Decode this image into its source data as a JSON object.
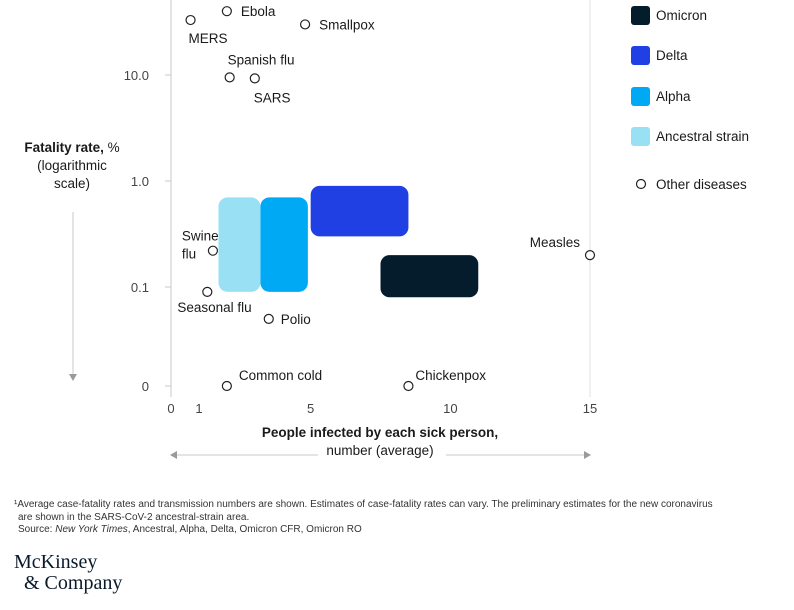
{
  "chart_data": {
    "type": "scatter",
    "y_scale": "log",
    "xlabel_bold": "People infected by each sick person,",
    "xlabel_rest": "number (average)",
    "ylabel_bold": "Fatality rate,",
    "ylabel_rest": "% (logarithmic scale)",
    "x_ticks": [
      "0",
      "1",
      "5",
      "10",
      "15"
    ],
    "y_ticks": [
      "10.0",
      "1.0",
      "0.1",
      "0"
    ],
    "xlim": [
      0,
      15
    ],
    "legend": [
      "Omicron",
      "Delta",
      "Alpha",
      "Ancestral strain",
      "Other diseases"
    ],
    "legend_position": "right",
    "colors": {
      "Omicron": "#051c2c",
      "Delta": "#2140e4",
      "Alpha": "#00a9f4",
      "Ancestral strain": "#99e0f5",
      "Other diseases": "#ffffff"
    },
    "variant_ranges": [
      {
        "name": "Omicron",
        "x_min": 7.5,
        "x_max": 11.0,
        "y_min": 0.08,
        "y_max": 0.2
      },
      {
        "name": "Delta",
        "x_min": 5.0,
        "x_max": 8.5,
        "y_min": 0.3,
        "y_max": 0.9
      },
      {
        "name": "Alpha",
        "x_min": 3.2,
        "x_max": 4.9,
        "y_min": 0.09,
        "y_max": 0.7
      },
      {
        "name": "Ancestral strain",
        "x_min": 1.7,
        "x_max": 3.2,
        "y_min": 0.09,
        "y_max": 0.7
      }
    ],
    "diseases": [
      {
        "name": "Ebola",
        "x": 2.0,
        "y": 40
      },
      {
        "name": "MERS",
        "x": 0.7,
        "y": 33
      },
      {
        "name": "Smallpox",
        "x": 4.8,
        "y": 30
      },
      {
        "name": "Spanish flu",
        "x": 2.1,
        "y": 9.5
      },
      {
        "name": "SARS",
        "x": 3.0,
        "y": 9.3
      },
      {
        "name": "Swine flu",
        "x": 1.5,
        "y": 0.22
      },
      {
        "name": "Seasonal flu",
        "x": 1.3,
        "y": 0.09
      },
      {
        "name": "Polio",
        "x": 3.5,
        "y": 0.05
      },
      {
        "name": "Measles",
        "x": 15.0,
        "y": 0.2
      },
      {
        "name": "Common cold",
        "x": 2.0,
        "y": 0
      },
      {
        "name": "Chickenpox",
        "x": 8.5,
        "y": 0
      }
    ]
  },
  "footnote": {
    "line1": "¹Average case-fatality rates and transmission numbers are shown. Estimates of case-fatality rates can vary. The preliminary estimates for the new coronavirus",
    "line2": "are shown in the SARS-CoV-2 ancestral-strain area.",
    "source_label": "Source:",
    "source_italic": "New York Times",
    "source_rest": ", Ancestral, Alpha, Delta, Omicron CFR, Omicron RO"
  },
  "logo": {
    "line1": "McKinsey",
    "line2": "& Company"
  }
}
